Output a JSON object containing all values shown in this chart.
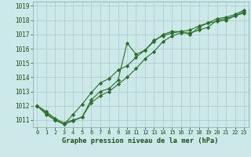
{
  "xlabel": "Graphe pression niveau de la mer (hPa)",
  "background_color": "#cce8e8",
  "grid_color": "#aacccc",
  "line_color": "#2d6e2d",
  "x_values": [
    0,
    1,
    2,
    3,
    4,
    5,
    6,
    7,
    8,
    9,
    10,
    11,
    12,
    13,
    14,
    15,
    16,
    17,
    18,
    19,
    20,
    21,
    22,
    23
  ],
  "line1": [
    1012.0,
    1011.6,
    1011.1,
    1010.8,
    1011.0,
    1011.2,
    1012.2,
    1012.7,
    1013.0,
    1013.5,
    1014.0,
    1014.6,
    1015.3,
    1015.8,
    1016.5,
    1016.9,
    1017.1,
    1017.1,
    1017.3,
    1017.5,
    1018.0,
    1018.1,
    1018.3,
    1018.5
  ],
  "line2": [
    1012.0,
    1011.5,
    1011.0,
    1010.7,
    1011.4,
    1012.1,
    1012.9,
    1013.6,
    1013.9,
    1014.5,
    1014.8,
    1015.4,
    1015.9,
    1016.5,
    1017.0,
    1017.2,
    1017.2,
    1017.3,
    1017.6,
    1017.8,
    1018.1,
    1018.2,
    1018.4,
    1018.7
  ],
  "line3": [
    1012.0,
    1011.4,
    1011.0,
    1010.7,
    1010.95,
    1011.2,
    1012.4,
    1013.0,
    1013.2,
    1013.8,
    1016.4,
    1015.6,
    1015.9,
    1016.6,
    1016.9,
    1017.1,
    1017.2,
    1017.0,
    1017.5,
    1017.8,
    1017.9,
    1018.0,
    1018.3,
    1018.6
  ],
  "ylim": [
    1010.5,
    1019.3
  ],
  "yticks": [
    1011,
    1012,
    1013,
    1014,
    1015,
    1016,
    1017,
    1018,
    1019
  ],
  "xlim": [
    -0.5,
    23.5
  ],
  "marker": "D",
  "marker_size": 2.2
}
